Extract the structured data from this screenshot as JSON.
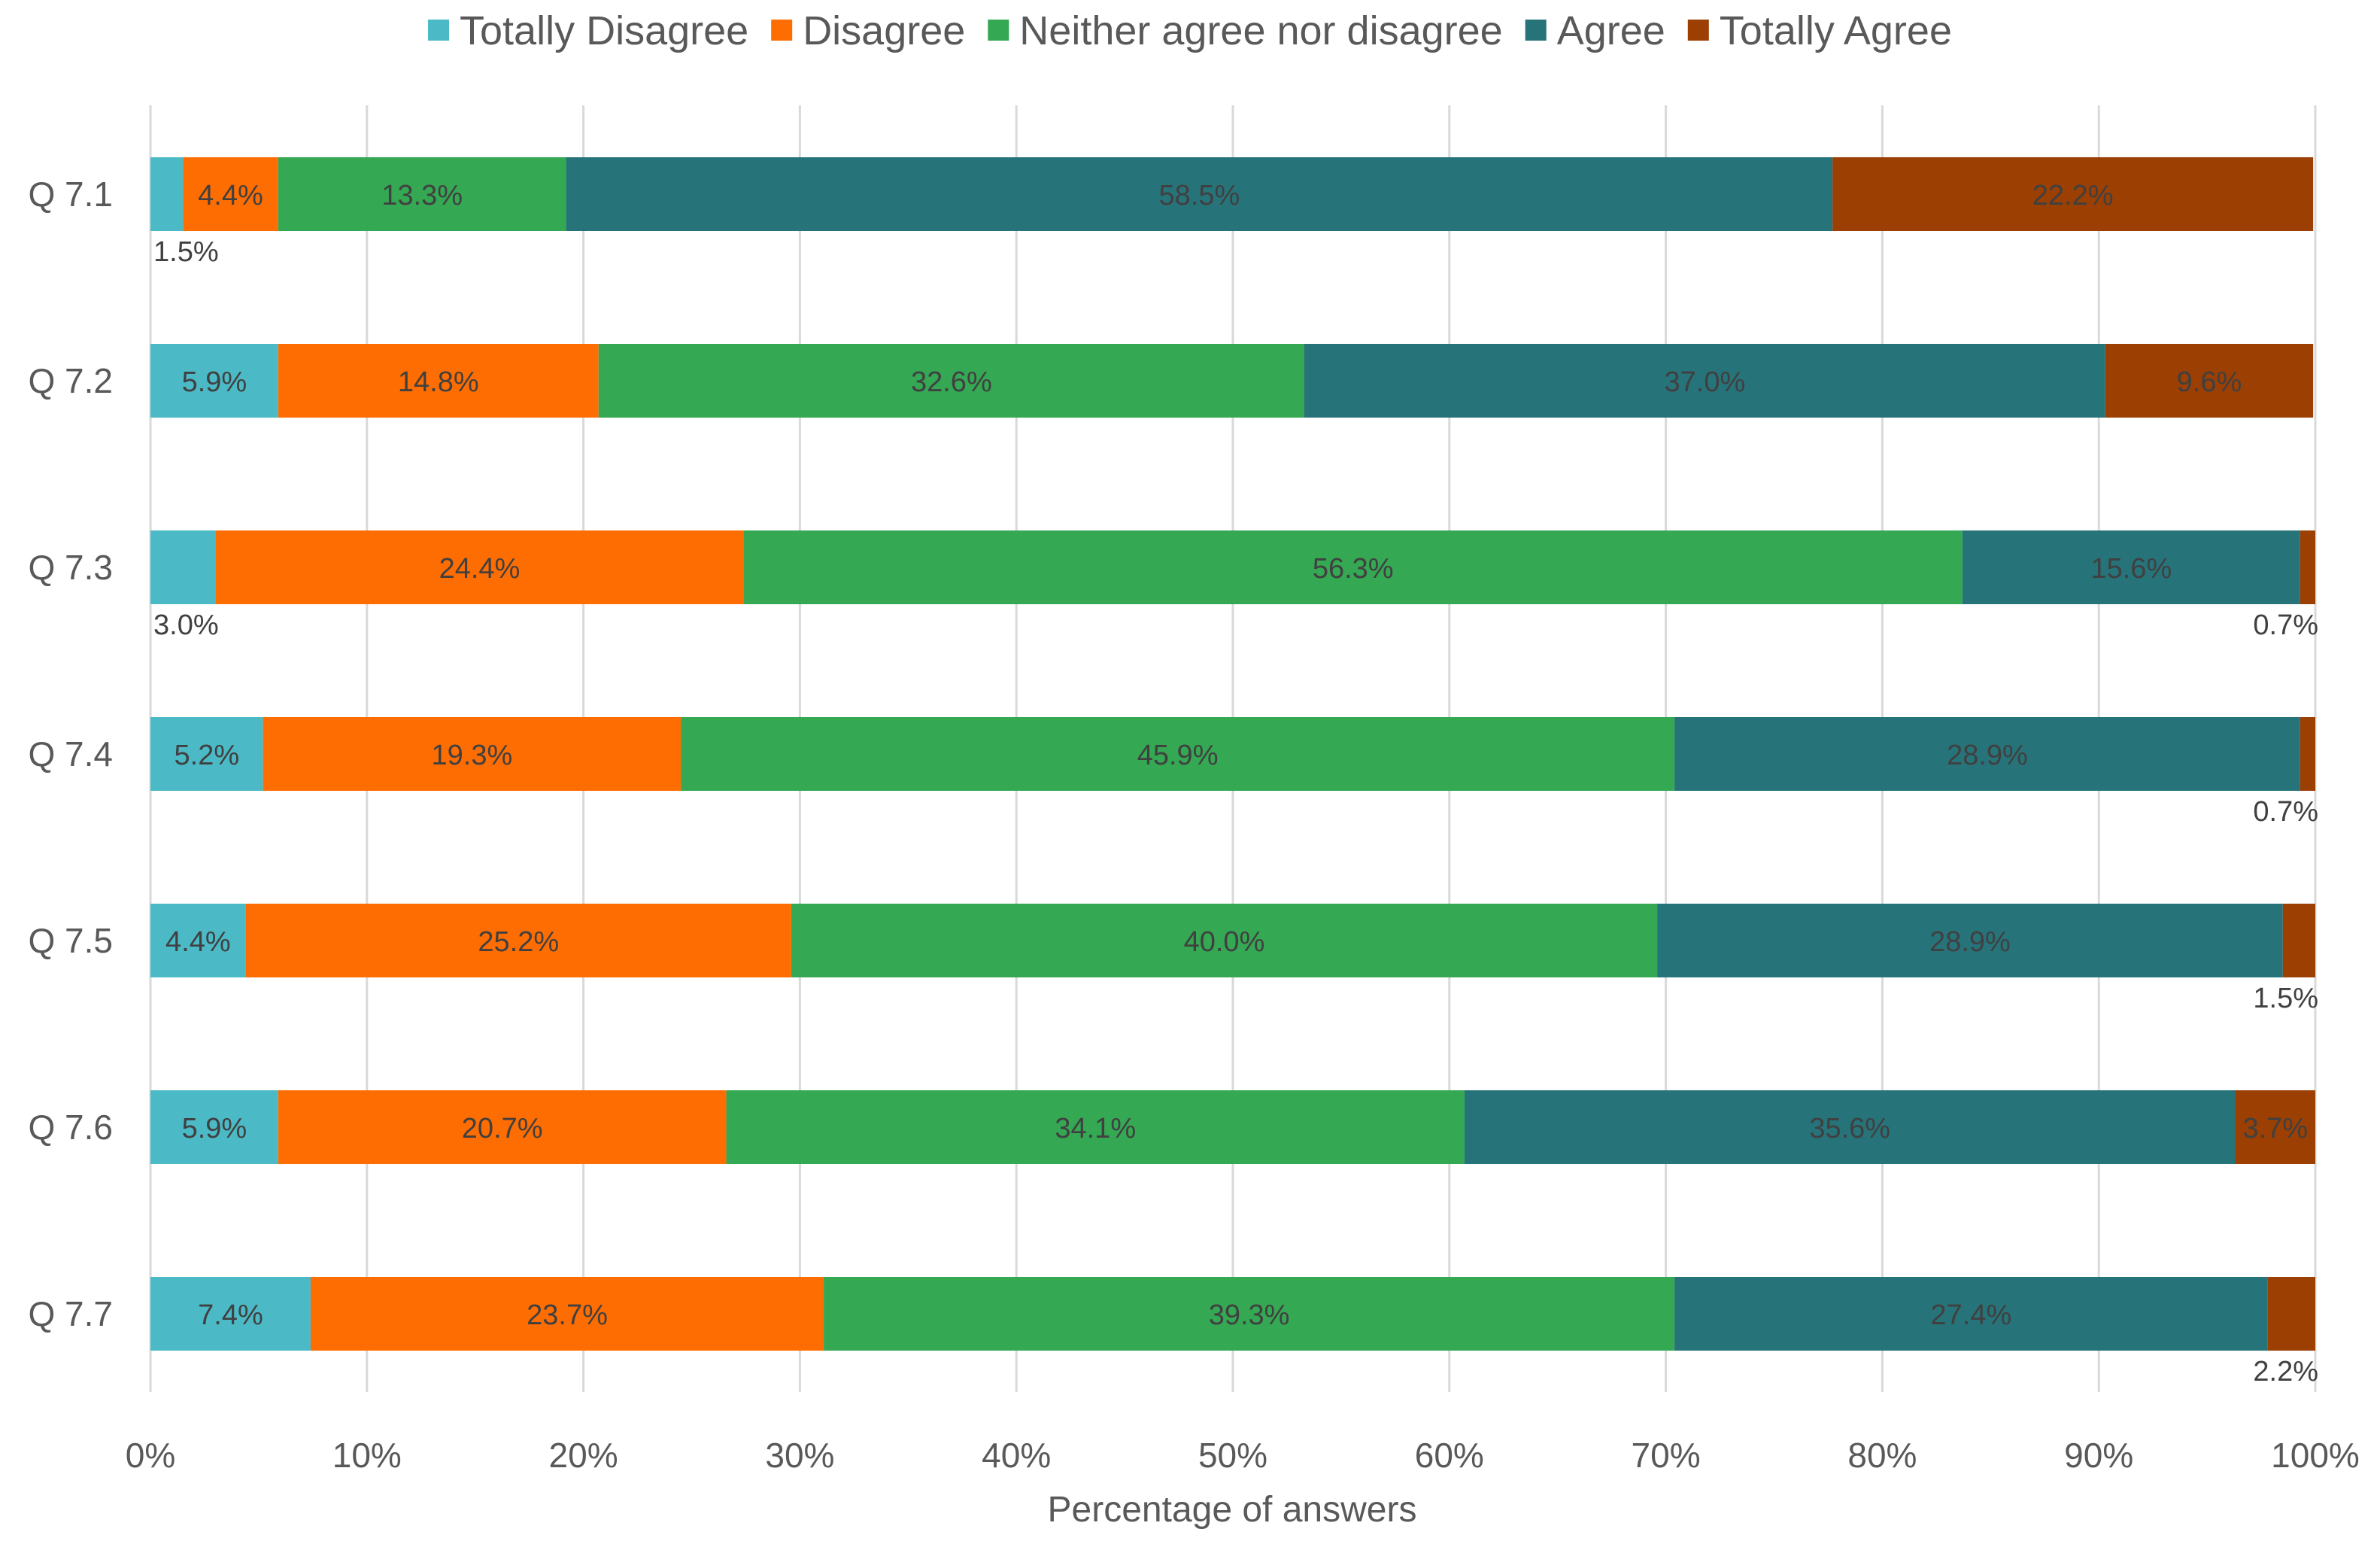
{
  "chart_data": {
    "type": "bar",
    "orientation": "horizontal",
    "stacked": true,
    "title": "",
    "xlabel": "Percentage of answers",
    "ylabel": "",
    "xlim": [
      0,
      100
    ],
    "x_ticks": [
      "0%",
      "10%",
      "20%",
      "30%",
      "40%",
      "50%",
      "60%",
      "70%",
      "80%",
      "90%",
      "100%"
    ],
    "grid": "vertical",
    "legend_position": "top",
    "categories": [
      "Q 7.1",
      "Q 7.2",
      "Q 7.3",
      "Q 7.4",
      "Q 7.5",
      "Q 7.6",
      "Q 7.7"
    ],
    "series": [
      {
        "name": "Totally Disagree",
        "color": "#4bbac6",
        "values": [
          1.5,
          5.9,
          3.0,
          5.2,
          4.4,
          5.9,
          7.4
        ]
      },
      {
        "name": "Disagree",
        "color": "#fe6d01",
        "values": [
          4.4,
          14.8,
          24.4,
          19.3,
          25.2,
          20.7,
          23.7
        ]
      },
      {
        "name": "Neither agree nor disagree",
        "color": "#34a853",
        "values": [
          13.3,
          32.6,
          56.3,
          45.9,
          40.0,
          34.1,
          39.3
        ]
      },
      {
        "name": "Agree",
        "color": "#26737a",
        "values": [
          58.5,
          37.0,
          15.6,
          28.9,
          28.9,
          35.6,
          27.4
        ]
      },
      {
        "name": "Totally Agree",
        "color": "#9b3f03",
        "values": [
          22.2,
          9.6,
          0.7,
          0.7,
          1.5,
          3.7,
          2.2
        ]
      }
    ],
    "labels": [
      [
        "1.5%",
        "4.4%",
        "13.3%",
        "58.5%",
        "22.2%"
      ],
      [
        "5.9%",
        "14.8%",
        "32.6%",
        "37.0%",
        "9.6%"
      ],
      [
        "3.0%",
        "24.4%",
        "56.3%",
        "15.6%",
        "0.7%"
      ],
      [
        "5.2%",
        "19.3%",
        "45.9%",
        "28.9%",
        "0.7%"
      ],
      [
        "4.4%",
        "25.2%",
        "40.0%",
        "28.9%",
        "1.5%"
      ],
      [
        "5.9%",
        "20.7%",
        "34.1%",
        "35.6%",
        "3.7%"
      ],
      [
        "7.4%",
        "23.7%",
        "39.3%",
        "27.4%",
        "2.2%"
      ]
    ]
  }
}
